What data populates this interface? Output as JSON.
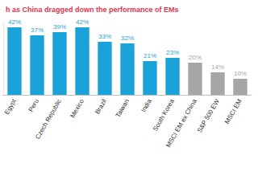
{
  "chart_data": {
    "type": "bar",
    "title": "h as China dragged down the performance of EMs",
    "categories": [
      "Egypt",
      "Peru",
      "Czech Republic",
      "Mexico",
      "Brazil",
      "Taiwan",
      "India",
      "South Korea",
      "MSCI EM ex China",
      "S&P 500 EW",
      "MSCI EM"
    ],
    "values": [
      42,
      37,
      39,
      42,
      33,
      32,
      21,
      23,
      20,
      14,
      10
    ],
    "value_labels": [
      "42%",
      "37%",
      "39%",
      "42%",
      "33%",
      "32%",
      "21%",
      "23%",
      "20%",
      "14%",
      "10%"
    ],
    "colors": [
      "#1aa3d8",
      "#1aa3d8",
      "#1aa3d8",
      "#1aa3d8",
      "#1aa3d8",
      "#1aa3d8",
      "#1aa3d8",
      "#1aa3d8",
      "#a6a6a6",
      "#a6a6a6",
      "#a6a6a6"
    ],
    "ylim": [
      0,
      45
    ],
    "data_labels": true,
    "tick_labels": "x",
    "grid": false
  }
}
